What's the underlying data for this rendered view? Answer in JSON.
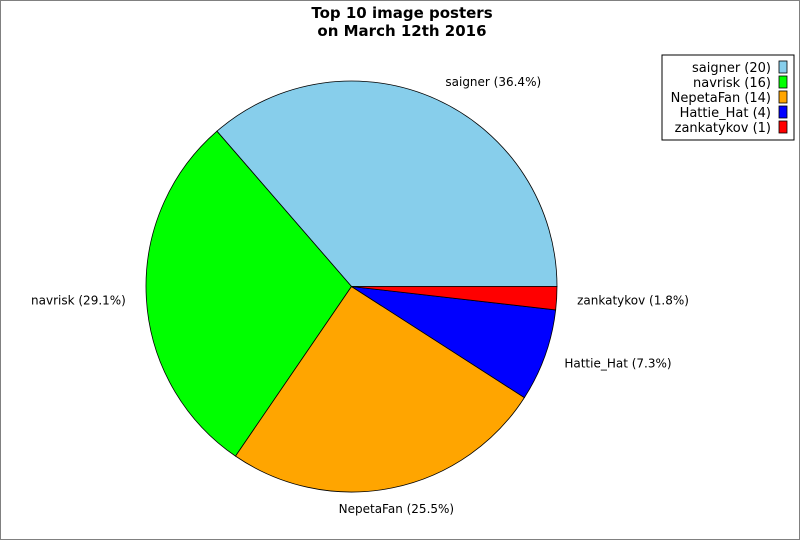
{
  "chart_data": {
    "type": "pie",
    "title_lines": [
      "Top 10 image posters",
      "on March 12th 2016"
    ],
    "slices": [
      {
        "name": "saigner",
        "value": 20,
        "percent_label": "saigner (36.4%)",
        "legend_label": "saigner (20)",
        "color": "#87CEEB"
      },
      {
        "name": "navrisk",
        "value": 16,
        "percent_label": "navrisk (29.1%)",
        "legend_label": "navrisk (16)",
        "color": "#00FF00"
      },
      {
        "name": "NepetaFan",
        "value": 14,
        "percent_label": "NepetaFan (25.5%)",
        "legend_label": "NepetaFan (14)",
        "color": "#FFA500"
      },
      {
        "name": "Hattie_Hat",
        "value": 4,
        "percent_label": "Hattie_Hat (7.3%)",
        "legend_label": "Hattie_Hat (4)",
        "color": "#0000FF"
      },
      {
        "name": "zankatykov",
        "value": 1,
        "percent_label": "zankatykov (1.8%)",
        "legend_label": "zankatykov (1)",
        "color": "#FF0000"
      }
    ],
    "start_angle": "east",
    "direction": "counterclockwise",
    "legend_position": "top-right"
  }
}
